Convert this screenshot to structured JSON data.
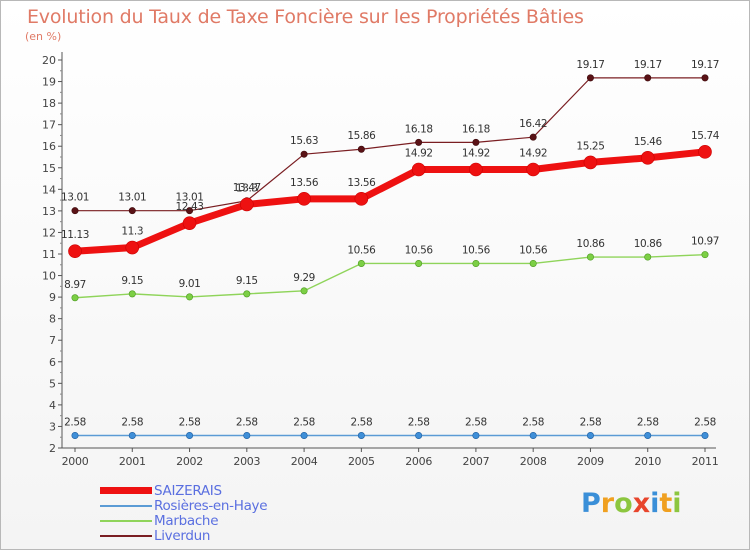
{
  "title": "Evolution du Taux de Taxe Foncière sur les Propriétés Bâties",
  "subtitle": "(en %)",
  "logo": {
    "letters": [
      {
        "ch": "P",
        "color": "#3a8fd8"
      },
      {
        "ch": "r",
        "color": "#f0a020"
      },
      {
        "ch": "o",
        "color": "#8cc63f"
      },
      {
        "ch": "x",
        "color": "#e8452c"
      },
      {
        "ch": "i",
        "color": "#3a8fd8"
      },
      {
        "ch": "t",
        "color": "#f0a020"
      },
      {
        "ch": "i",
        "color": "#8cc63f"
      }
    ]
  },
  "chart_data": {
    "type": "line",
    "x": [
      "2000",
      "2001",
      "2002",
      "2003",
      "2004",
      "2005",
      "2006",
      "2007",
      "2008",
      "2009",
      "2010",
      "2011"
    ],
    "ylim": [
      2,
      20
    ],
    "yticks": [
      "2",
      "3",
      "4",
      "5",
      "6",
      "7",
      "8",
      "9",
      "10",
      "11",
      "12",
      "13",
      "14",
      "15",
      "16",
      "17",
      "18",
      "19",
      "20"
    ],
    "grid": false,
    "legend_position": "bottom-left",
    "series": [
      {
        "name": "Liverdun",
        "color": "#7a1e22",
        "values": [
          13.01,
          13.01,
          13.01,
          13.47,
          15.63,
          15.86,
          16.18,
          16.18,
          16.42,
          19.17,
          19.17,
          19.17
        ],
        "labels": [
          "13.01",
          "13.01",
          "13.01",
          "13.47",
          "15.63",
          "15.86",
          "16.18",
          "16.18",
          "16.42",
          "19.17",
          "19.17",
          "19.17"
        ]
      },
      {
        "name": "SAIZERAIS",
        "color": "#ee1111",
        "values": [
          11.13,
          11.3,
          12.43,
          13.3,
          13.56,
          13.56,
          14.92,
          14.92,
          14.92,
          15.25,
          15.46,
          15.74
        ],
        "labels": [
          "11.13",
          "11.3",
          "12.43",
          "13.3",
          "13.56",
          "13.56",
          "14.92",
          "14.92",
          "14.92",
          "15.25",
          "15.46",
          "15.74"
        ]
      },
      {
        "name": "Marbache",
        "color": "#8fd45a",
        "values": [
          8.97,
          9.15,
          9.01,
          9.15,
          9.29,
          10.56,
          10.56,
          10.56,
          10.56,
          10.86,
          10.86,
          10.97
        ],
        "labels": [
          "8.97",
          "9.15",
          "9.01",
          "9.15",
          "9.29",
          "10.56",
          "10.56",
          "10.56",
          "10.56",
          "10.86",
          "10.86",
          "10.97"
        ]
      },
      {
        "name": "Rosières-en-Haye",
        "color": "#5b9bd5",
        "values": [
          2.58,
          2.58,
          2.58,
          2.58,
          2.58,
          2.58,
          2.58,
          2.58,
          2.58,
          2.58,
          2.58,
          2.58
        ],
        "labels": [
          "2.58",
          "2.58",
          "2.58",
          "2.58",
          "2.58",
          "2.58",
          "2.58",
          "2.58",
          "2.58",
          "2.58",
          "2.58",
          "2.58"
        ]
      }
    ],
    "legend": [
      "SAIZERAIS",
      "Rosières-en-Haye",
      "Marbache",
      "Liverdun"
    ]
  }
}
